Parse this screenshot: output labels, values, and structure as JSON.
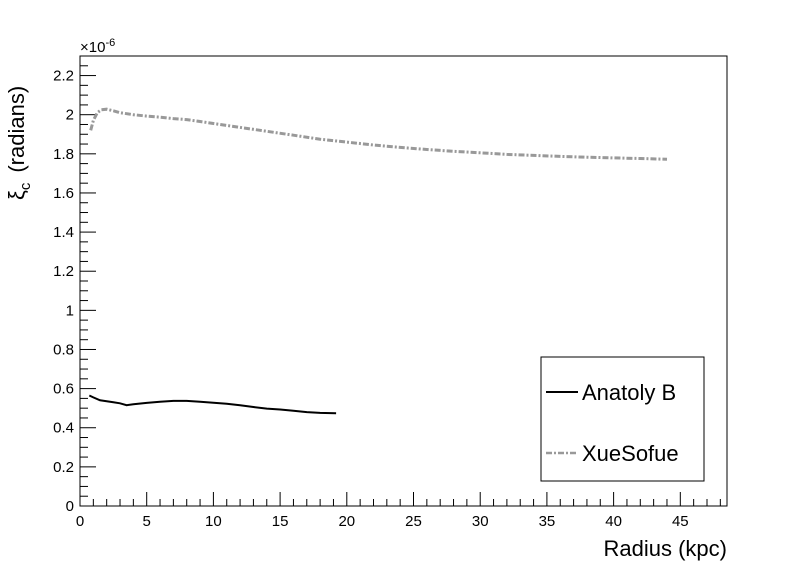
{
  "chart_data": {
    "type": "line",
    "xlabel": "Radius (kpc)",
    "ylabel_symbol": "ξ",
    "ylabel_subscript": "c",
    "ylabel_unit": "(radians)",
    "y_exponent_label": "×10",
    "y_exponent_power": "-6",
    "xlim": [
      0,
      48.5
    ],
    "ylim": [
      0,
      2.3
    ],
    "x_major_ticks": [
      0,
      5,
      10,
      15,
      20,
      25,
      30,
      35,
      40,
      45
    ],
    "x_major_labels": [
      "0",
      "5",
      "10",
      "15",
      "20",
      "25",
      "30",
      "35",
      "40",
      "45"
    ],
    "y_major_ticks": [
      0,
      0.2,
      0.4,
      0.6,
      0.8,
      1.0,
      1.2,
      1.4,
      1.6,
      1.8,
      2.0,
      2.2
    ],
    "y_major_labels": [
      "0",
      "0.2",
      "0.4",
      "0.6",
      "0.8",
      "1",
      "1.2",
      "1.4",
      "1.6",
      "1.8",
      "2",
      "2.2"
    ],
    "grid": false,
    "legend_position": "bottom-right",
    "series": [
      {
        "name": "Anatoly B",
        "color": "#000000",
        "style": "solid",
        "x": [
          0.7,
          1.0,
          1.5,
          2.0,
          2.5,
          3.0,
          3.5,
          4.0,
          5.0,
          6.0,
          7.0,
          8.0,
          9.0,
          10.0,
          11.0,
          12.0,
          13.0,
          14.0,
          15.0,
          16.0,
          17.0,
          18.0,
          19.2
        ],
        "y": [
          0.565,
          0.555,
          0.54,
          0.535,
          0.53,
          0.525,
          0.515,
          0.52,
          0.527,
          0.533,
          0.537,
          0.537,
          0.533,
          0.528,
          0.523,
          0.515,
          0.506,
          0.498,
          0.493,
          0.487,
          0.48,
          0.476,
          0.474
        ]
      },
      {
        "name": "XueSofue",
        "color": "#999999",
        "style": "dash-dot",
        "x": [
          0.8,
          1.0,
          1.3,
          1.6,
          2.0,
          2.5,
          3.0,
          3.5,
          4.0,
          5.0,
          6.0,
          7.0,
          8.0,
          9.0,
          10.0,
          12.0,
          14.0,
          16.0,
          18.0,
          20.0,
          22.0,
          24.0,
          26.0,
          28.0,
          30.0,
          32.0,
          34.0,
          36.0,
          38.0,
          40.0,
          42.0,
          44.0
        ],
        "y": [
          1.92,
          1.97,
          2.01,
          2.025,
          2.028,
          2.02,
          2.01,
          2.005,
          2.0,
          1.993,
          1.987,
          1.98,
          1.975,
          1.965,
          1.955,
          1.935,
          1.915,
          1.895,
          1.875,
          1.86,
          1.845,
          1.833,
          1.822,
          1.813,
          1.805,
          1.797,
          1.792,
          1.787,
          1.783,
          1.779,
          1.776,
          1.772
        ]
      }
    ]
  }
}
